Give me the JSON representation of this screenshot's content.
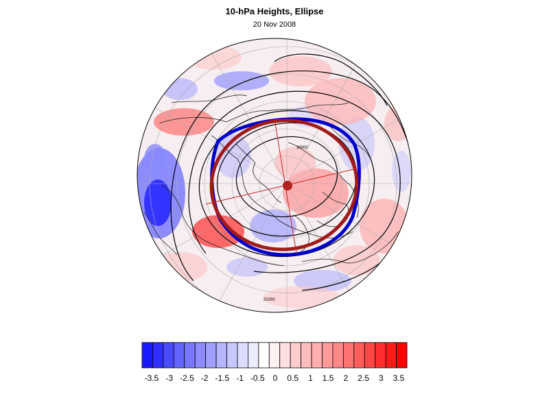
{
  "title": "10-hPa Heights, Ellipse",
  "subtitle": "20 Nov 2008",
  "map": {
    "projection": "north-polar-stereographic",
    "contour_labels": [
      "30000",
      "31000"
    ],
    "ellipse_colors": {
      "fit": "#0000cc",
      "ellipse": "#a01a1a"
    }
  },
  "colorbar": {
    "tick_labels": [
      "-3.5",
      "-3",
      "-2.5",
      "-2",
      "-1.5",
      "-1",
      "-0.5",
      "0",
      "0.5",
      "1",
      "1.5",
      "2",
      "2.5",
      "3",
      "3.5"
    ],
    "colors": [
      "#1a1aff",
      "#2f2fff",
      "#4a4aff",
      "#6464ff",
      "#7878ff",
      "#8c8cff",
      "#a0a0ff",
      "#b4b4ff",
      "#c8c8ff",
      "#dcdcff",
      "#ececff",
      "#ffffff",
      "#fff0f0",
      "#ffe0e0",
      "#ffcccc",
      "#ffbdbd",
      "#ffadad",
      "#ff9b9b",
      "#ff8888",
      "#ff7272",
      "#ff5c5c",
      "#ff4646",
      "#ff2e2e",
      "#ff1a1a",
      "#ff0000"
    ]
  }
}
